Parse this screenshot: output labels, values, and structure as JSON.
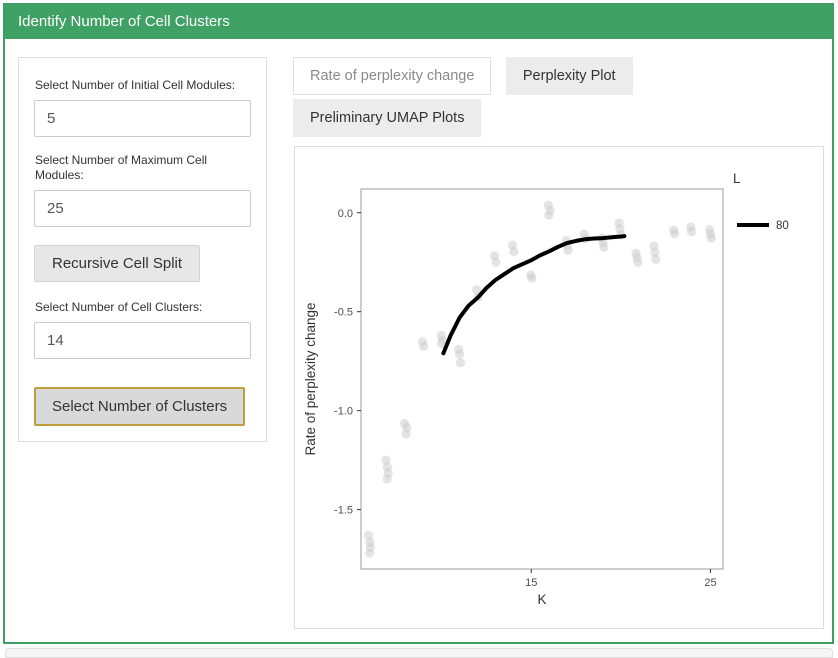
{
  "panel": {
    "title": "Identify Number of Cell Clusters"
  },
  "form": {
    "fields": [
      {
        "label": "Select Number of Initial Cell Modules:",
        "value": "5"
      },
      {
        "label": "Select Number of Maximum Cell Modules:",
        "value": "25"
      },
      {
        "label": "Select Number of Cell Clusters:",
        "value": "14"
      }
    ],
    "buttons": {
      "recursive": "Recursive Cell Split",
      "select": "Select Number of Clusters"
    }
  },
  "tabs": [
    {
      "label": "Rate of perplexity change",
      "active": true
    },
    {
      "label": "Perplexity Plot",
      "active": false
    },
    {
      "label": "Preliminary UMAP Plots",
      "active": false
    }
  ],
  "colors": {
    "header_green": "#3fa164",
    "select_button_border": "#c29d3c",
    "point_gray": "#c9c9c9",
    "smooth_line_black": "#000000",
    "chart_panel_border": "#acacac",
    "axis_text": "#4d4d4d",
    "axis_title": "#333333"
  },
  "chart_data": {
    "type": "scatter",
    "title": "",
    "xlabel": "K",
    "ylabel": "Rate of perplexity change",
    "xlim": [
      5.5,
      25.7
    ],
    "ylim": [
      -1.8,
      0.12
    ],
    "xticks": [
      15,
      25
    ],
    "yticks": [
      0.0,
      -0.5,
      -1.0,
      -1.5
    ],
    "grid": false,
    "legend": {
      "title": "L",
      "position": "right",
      "entries": [
        {
          "label": "80",
          "type": "line",
          "color": "#000000"
        }
      ]
    },
    "points": [
      [
        5.93,
        -1.63
      ],
      [
        6.0,
        -1.665
      ],
      [
        6.02,
        -1.69
      ],
      [
        5.98,
        -1.72
      ],
      [
        6.9,
        -1.25
      ],
      [
        6.97,
        -1.285
      ],
      [
        7.02,
        -1.315
      ],
      [
        6.96,
        -1.345
      ],
      [
        7.93,
        -1.065
      ],
      [
        8.06,
        -1.085
      ],
      [
        8.02,
        -1.118
      ],
      [
        8.93,
        -0.652
      ],
      [
        9.0,
        -0.675
      ],
      [
        9.98,
        -0.62
      ],
      [
        10.05,
        -0.645
      ],
      [
        10.0,
        -0.662
      ],
      [
        10.95,
        -0.69
      ],
      [
        11.0,
        -0.715
      ],
      [
        11.05,
        -0.758
      ],
      [
        11.95,
        -0.39
      ],
      [
        12.05,
        -0.425
      ],
      [
        12.95,
        -0.218
      ],
      [
        13.03,
        -0.25
      ],
      [
        13.95,
        -0.163
      ],
      [
        14.03,
        -0.196
      ],
      [
        14.97,
        -0.315
      ],
      [
        15.03,
        -0.33
      ],
      [
        15.95,
        0.038
      ],
      [
        16.05,
        0.012
      ],
      [
        15.98,
        -0.012
      ],
      [
        16.95,
        -0.14
      ],
      [
        17.0,
        -0.165
      ],
      [
        17.05,
        -0.19
      ],
      [
        17.95,
        -0.108
      ],
      [
        18.05,
        -0.132
      ],
      [
        18.95,
        -0.127
      ],
      [
        19.0,
        -0.15
      ],
      [
        19.05,
        -0.175
      ],
      [
        19.9,
        -0.052
      ],
      [
        19.95,
        -0.082
      ],
      [
        20.0,
        -0.112
      ],
      [
        20.85,
        -0.205
      ],
      [
        20.9,
        -0.228
      ],
      [
        20.95,
        -0.25
      ],
      [
        21.85,
        -0.168
      ],
      [
        21.9,
        -0.2
      ],
      [
        21.95,
        -0.235
      ],
      [
        22.95,
        -0.088
      ],
      [
        23.0,
        -0.105
      ],
      [
        23.9,
        -0.072
      ],
      [
        23.95,
        -0.095
      ],
      [
        24.95,
        -0.085
      ],
      [
        25.0,
        -0.108
      ],
      [
        25.05,
        -0.128
      ]
    ],
    "smooth_line": {
      "name": "80",
      "points": [
        [
          10.1,
          -0.71
        ],
        [
          10.5,
          -0.62
        ],
        [
          11,
          -0.53
        ],
        [
          11.5,
          -0.47
        ],
        [
          12,
          -0.43
        ],
        [
          12.5,
          -0.38
        ],
        [
          13,
          -0.34
        ],
        [
          13.5,
          -0.31
        ],
        [
          14,
          -0.28
        ],
        [
          14.5,
          -0.26
        ],
        [
          15,
          -0.24
        ],
        [
          15.5,
          -0.215
        ],
        [
          16,
          -0.195
        ],
        [
          16.5,
          -0.172
        ],
        [
          17,
          -0.153
        ],
        [
          17.5,
          -0.142
        ],
        [
          18,
          -0.134
        ],
        [
          18.5,
          -0.13
        ],
        [
          19,
          -0.128
        ],
        [
          19.5,
          -0.124
        ],
        [
          20,
          -0.12
        ],
        [
          20.2,
          -0.118
        ]
      ]
    }
  }
}
